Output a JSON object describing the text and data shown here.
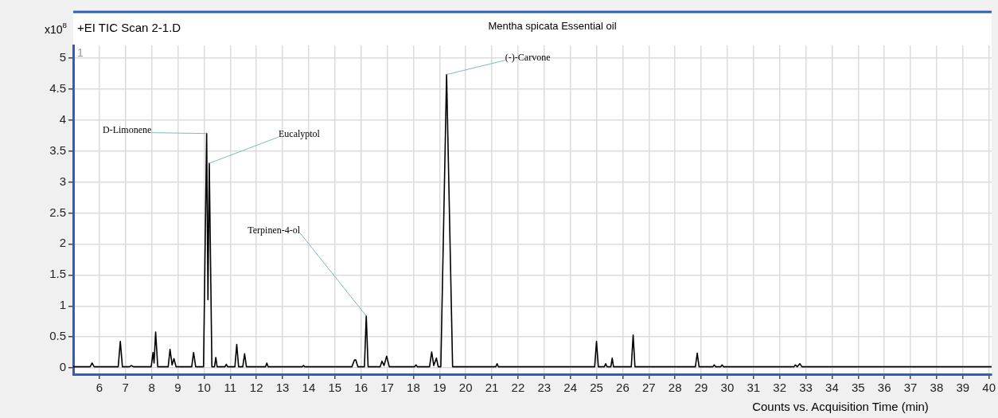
{
  "chart_data": {
    "type": "line",
    "title": "Mentha spicata Essential oil",
    "subtitle": "+EI TIC Scan 2-1.D",
    "xlabel": "Counts vs. Acquisition Time (min)",
    "ylabel": "x10$^{8}$",
    "annotations": [
      "1",
      {
        "text": "D-Limonene",
        "x": 10.1,
        "y": 3.78
      },
      {
        "text": "Eucalyptol",
        "x": 10.2,
        "y": 3.3
      },
      {
        "text": "Terpinen-4-ol",
        "x": 16.2,
        "y": 0.84
      },
      {
        "text": "(-)-Carvone",
        "x": 19.27,
        "y": 4.73
      }
    ],
    "x": [
      5.0,
      5.65,
      5.72,
      5.8,
      6.72,
      6.8,
      6.88,
      7.15,
      7.22,
      7.3,
      7.98,
      8.05,
      8.09,
      8.15,
      8.23,
      8.63,
      8.7,
      8.78,
      8.85,
      8.93,
      9.53,
      9.6,
      9.68,
      9.98,
      10.1,
      10.15,
      10.2,
      10.3,
      10.4,
      10.45,
      10.5,
      10.8,
      10.85,
      10.9,
      11.18,
      11.25,
      11.32,
      11.48,
      11.55,
      11.62,
      12.35,
      12.4,
      12.45,
      13.75,
      13.8,
      13.85,
      15.65,
      15.75,
      15.8,
      15.88,
      16.13,
      16.2,
      16.27,
      16.73,
      16.8,
      16.88,
      16.98,
      17.08,
      18.05,
      18.1,
      18.15,
      18.62,
      18.7,
      18.78,
      18.88,
      18.95,
      19.05,
      19.27,
      19.5,
      21.15,
      21.2,
      21.25,
      24.93,
      25.0,
      25.07,
      25.3,
      25.35,
      25.4,
      25.55,
      25.6,
      25.65,
      26.33,
      26.4,
      26.47,
      28.78,
      28.85,
      28.92,
      29.45,
      29.5,
      29.55,
      29.75,
      29.8,
      29.85,
      32.55,
      32.6,
      32.67,
      32.77,
      32.85,
      40.1
    ],
    "series": [
      {
        "color": "#000000",
        "values": [
          0.02,
          0.02,
          0.08,
          0.02,
          0.02,
          0.43,
          0.02,
          0.02,
          0.04,
          0.02,
          0.02,
          0.25,
          0.08,
          0.58,
          0.02,
          0.02,
          0.3,
          0.05,
          0.15,
          0.02,
          0.02,
          0.25,
          0.02,
          0.02,
          3.78,
          1.1,
          3.3,
          0.02,
          0.02,
          0.17,
          0.02,
          0.02,
          0.06,
          0.02,
          0.02,
          0.38,
          0.02,
          0.02,
          0.23,
          0.02,
          0.02,
          0.08,
          0.02,
          0.02,
          0.04,
          0.02,
          0.02,
          0.13,
          0.13,
          0.02,
          0.02,
          0.84,
          0.02,
          0.02,
          0.11,
          0.04,
          0.19,
          0.02,
          0.02,
          0.05,
          0.02,
          0.02,
          0.26,
          0.04,
          0.16,
          0.02,
          0.02,
          4.73,
          0.02,
          0.02,
          0.07,
          0.02,
          0.02,
          0.43,
          0.02,
          0.02,
          0.07,
          0.02,
          0.02,
          0.16,
          0.02,
          0.02,
          0.53,
          0.02,
          0.02,
          0.24,
          0.02,
          0.02,
          0.05,
          0.02,
          0.02,
          0.05,
          0.02,
          0.02,
          0.05,
          0.02,
          0.07,
          0.02,
          0.02
        ]
      }
    ],
    "xlim": [
      5,
      40.1
    ],
    "ylim": [
      -0.1,
      5.2
    ],
    "xticks": [
      6,
      7,
      8,
      9,
      10,
      11,
      12,
      13,
      14,
      15,
      16,
      17,
      18,
      19,
      20,
      21,
      22,
      23,
      24,
      25,
      26,
      27,
      28,
      29,
      30,
      31,
      32,
      33,
      34,
      35,
      36,
      37,
      38,
      39,
      40
    ],
    "yticks": [
      0,
      0.5,
      1,
      1.5,
      2,
      2.5,
      3,
      3.5,
      4,
      4.5,
      5
    ],
    "grid": true,
    "legend": false,
    "marker": "none",
    "line_style": "solid"
  }
}
